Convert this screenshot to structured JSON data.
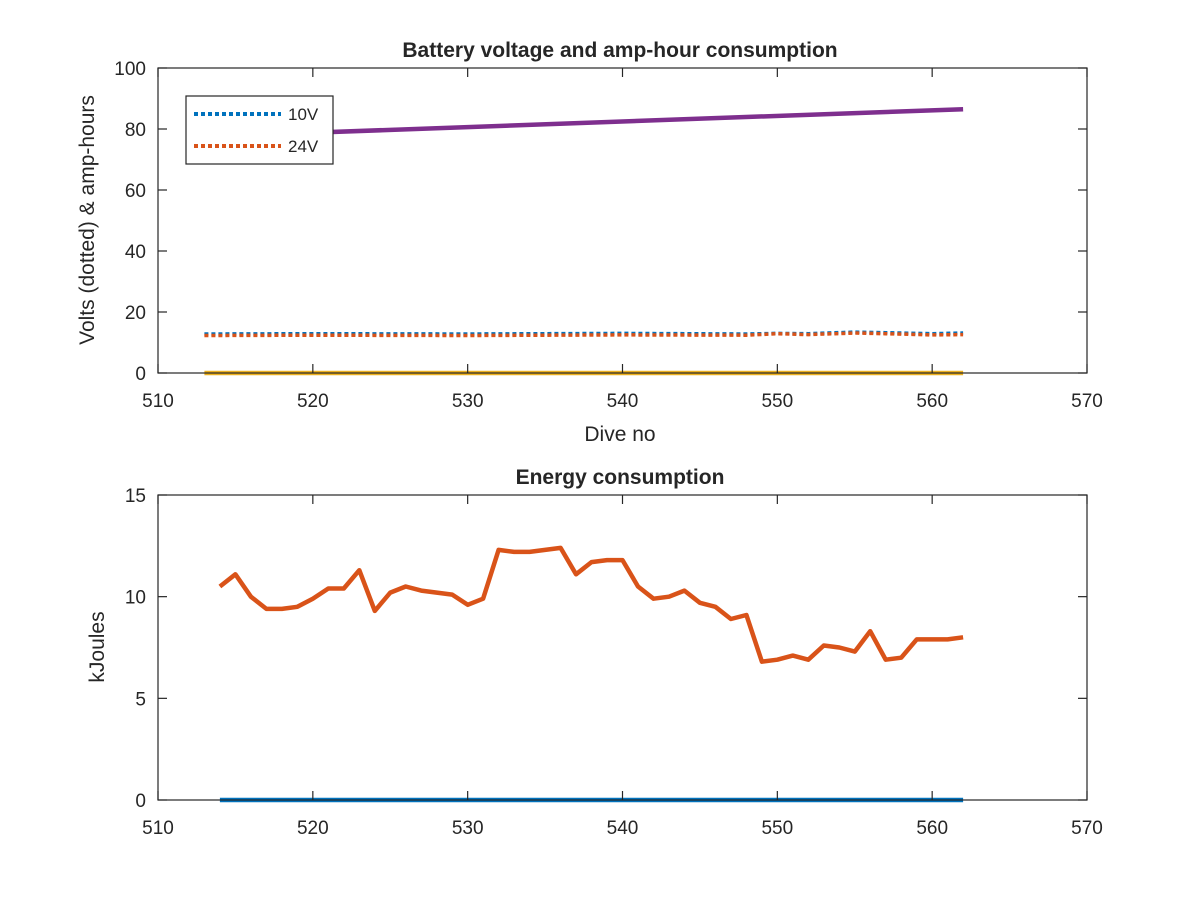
{
  "chart_data": [
    {
      "type": "line",
      "title": "Battery voltage and amp-hour consumption",
      "xlabel": "Dive no",
      "ylabel": "Volts (dotted) & amp-hours",
      "xlim": [
        510,
        570
      ],
      "ylim": [
        0,
        100
      ],
      "xticks": [
        "510",
        "520",
        "530",
        "540",
        "550",
        "560",
        "570"
      ],
      "yticks": [
        "0",
        "20",
        "40",
        "60",
        "80",
        "100"
      ],
      "grid": false,
      "legend_position": "top-left",
      "series": [
        {
          "name": "10V",
          "style": "dotted",
          "color": "#0072BD",
          "x": [
            513,
            520,
            530,
            540,
            548,
            550,
            552,
            555,
            557,
            560,
            562
          ],
          "y": [
            12.8,
            12.9,
            12.8,
            13.0,
            12.8,
            13.0,
            12.9,
            13.4,
            13.2,
            12.9,
            13.1
          ]
        },
        {
          "name": "24V",
          "style": "dotted",
          "color": "#D95319",
          "x": [
            513,
            520,
            530,
            540,
            548,
            550,
            552,
            555,
            557,
            560,
            562
          ],
          "y": [
            12.3,
            12.4,
            12.3,
            12.5,
            12.4,
            12.9,
            12.6,
            13.1,
            12.9,
            12.5,
            12.6
          ]
        },
        {
          "style": "solid",
          "color": "#EDB120",
          "x": [
            513,
            562
          ],
          "y": [
            0,
            0
          ]
        },
        {
          "style": "solid",
          "color": "#7E2F8E",
          "x": [
            513,
            562
          ],
          "y": [
            77.5,
            86.5
          ]
        }
      ]
    },
    {
      "type": "line",
      "title": "Energy consumption",
      "xlabel": "",
      "ylabel": "kJoules",
      "xlim": [
        510,
        570
      ],
      "ylim": [
        0,
        15
      ],
      "xticks": [
        "510",
        "520",
        "530",
        "540",
        "550",
        "560",
        "570"
      ],
      "yticks": [
        "0",
        "5",
        "10",
        "15"
      ],
      "grid": false,
      "series": [
        {
          "style": "solid",
          "color": "#D95319",
          "x": [
            514,
            515,
            516,
            517,
            518,
            519,
            520,
            521,
            522,
            523,
            524,
            525,
            526,
            527,
            528,
            529,
            530,
            531,
            532,
            533,
            534,
            535,
            536,
            537,
            538,
            539,
            540,
            541,
            542,
            543,
            544,
            545,
            546,
            547,
            548,
            549,
            550,
            551,
            552,
            553,
            554,
            555,
            556,
            557,
            558,
            559,
            560,
            561,
            562
          ],
          "y": [
            10.5,
            11.1,
            10.0,
            9.4,
            9.4,
            9.5,
            9.9,
            10.4,
            10.4,
            11.3,
            9.3,
            10.2,
            10.5,
            10.3,
            10.2,
            10.1,
            9.6,
            9.9,
            12.3,
            12.2,
            12.2,
            12.3,
            12.4,
            11.1,
            11.7,
            11.8,
            11.8,
            10.5,
            9.9,
            10.0,
            10.3,
            9.7,
            9.5,
            8.9,
            9.1,
            6.8,
            6.9,
            7.1,
            6.9,
            7.6,
            7.5,
            7.3,
            8.3,
            6.9,
            7.0,
            7.9,
            7.9,
            7.9,
            8.0
          ]
        },
        {
          "style": "solid",
          "color": "#0072BD",
          "x": [
            514,
            562
          ],
          "y": [
            0,
            0
          ]
        }
      ]
    }
  ]
}
